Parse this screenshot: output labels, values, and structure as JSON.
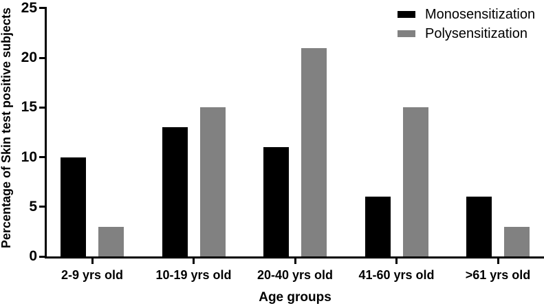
{
  "chart_data": {
    "type": "bar",
    "title": "",
    "categories": [
      "2-9 yrs old",
      "10-19 yrs old",
      "20-40 yrs old",
      "41-60 yrs old",
      ">61 yrs old"
    ],
    "series": [
      {
        "name": "Monosensitization",
        "color": "#000000",
        "values": [
          10,
          13,
          11,
          6,
          6
        ]
      },
      {
        "name": "Polysensitization",
        "color": "#818181",
        "values": [
          3,
          15,
          21,
          15,
          3
        ]
      }
    ],
    "xlabel": "Age groups",
    "ylabel": "Percentage of Skin test positive subjects",
    "ylim": [
      0,
      25
    ],
    "yticks": [
      0,
      5,
      10,
      15,
      20,
      25
    ],
    "grid": false,
    "legend_position": "top-right",
    "colors": {
      "axis": "#000000",
      "background": "#ffffff",
      "text": "#000000"
    }
  }
}
